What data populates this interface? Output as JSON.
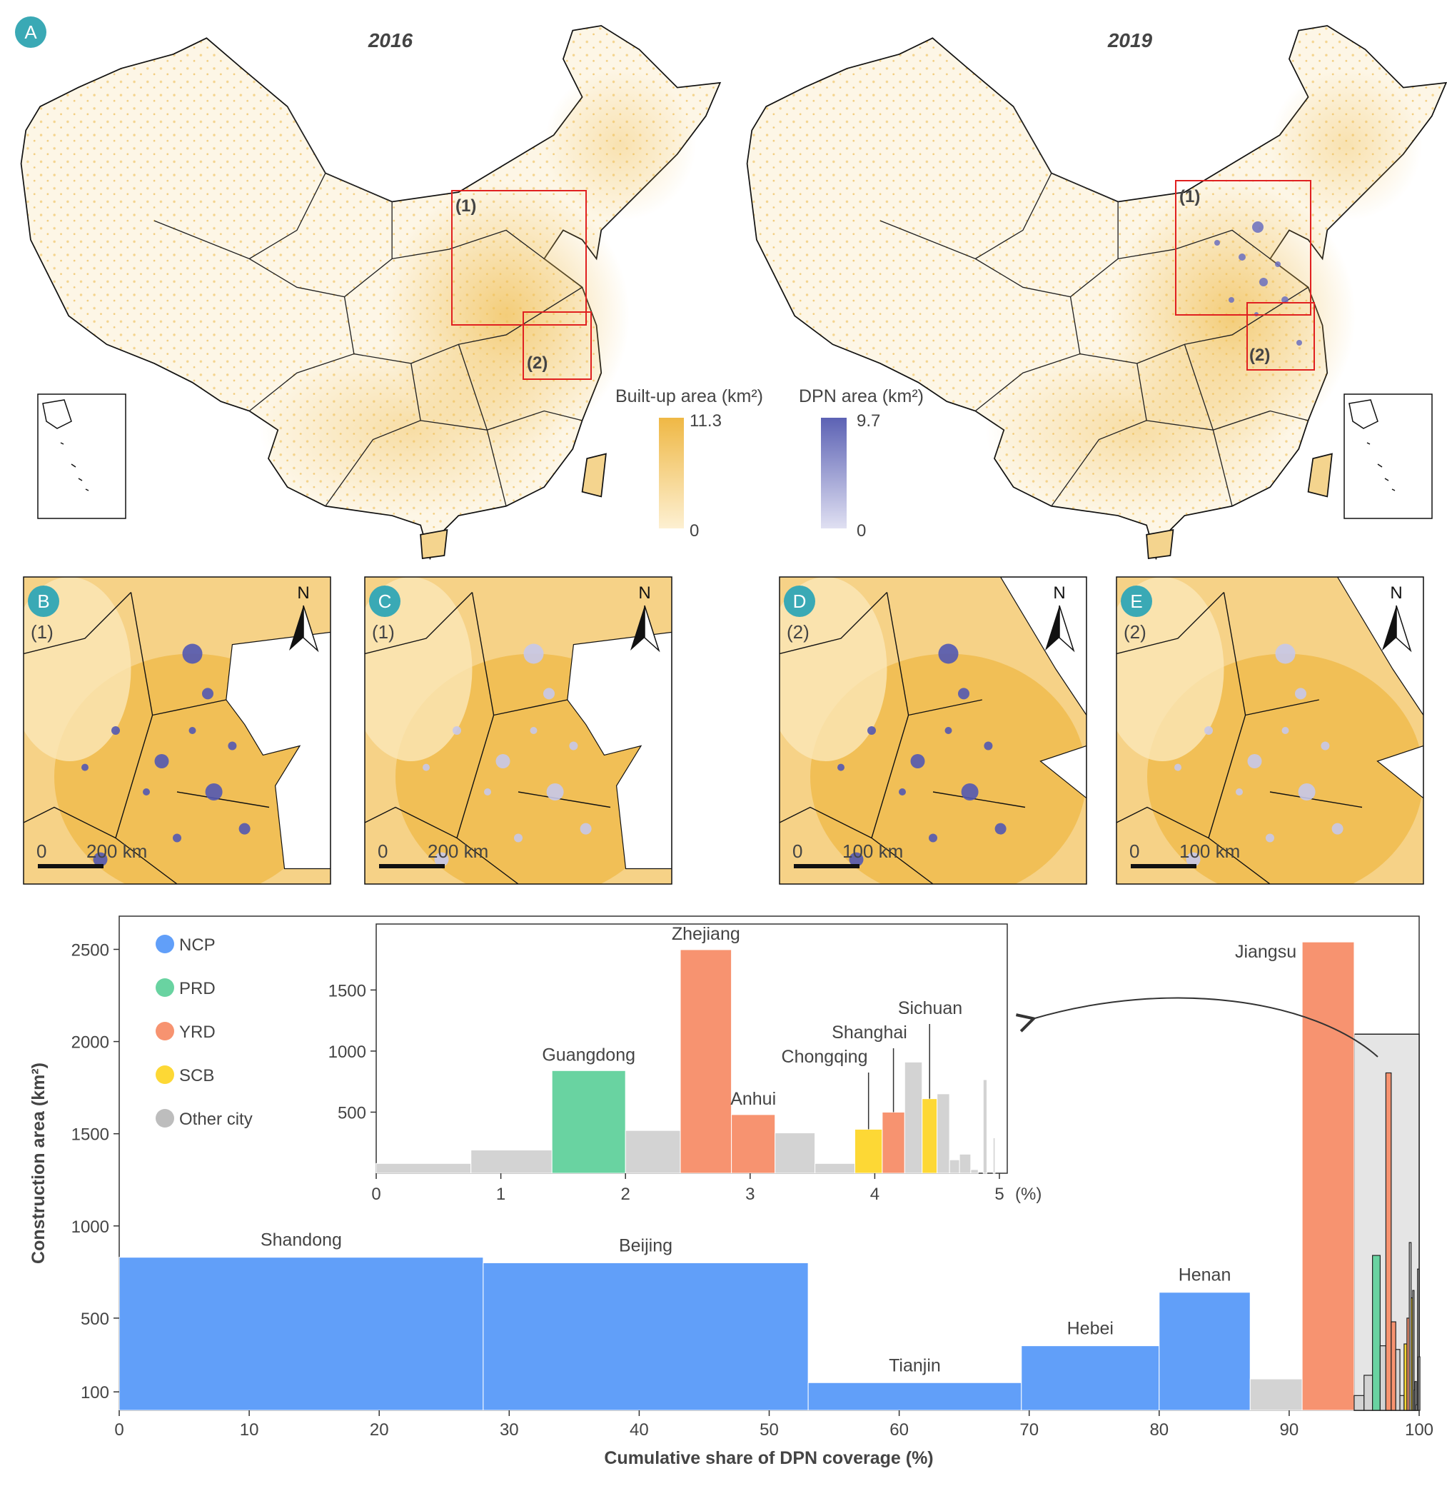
{
  "panel_a": {
    "badge": "A",
    "maps": [
      {
        "year": "2016",
        "box1_label": "(1)",
        "box2_label": "(2)"
      },
      {
        "year": "2019",
        "box1_label": "(1)",
        "box2_label": "(2)"
      }
    ],
    "legend_builtup": {
      "title": "Built-up area (km²)",
      "max": "11.3",
      "min": "0",
      "color_low": "#fdf0d2",
      "color_high": "#efb845"
    },
    "legend_dpn": {
      "title": "DPN area (km²)",
      "max": "9.7",
      "min": "0",
      "color_low": "#e0e0f2",
      "color_high": "#5c62b4"
    }
  },
  "zoom_panels": [
    {
      "badge": "B",
      "region": "(1)",
      "north": "N",
      "scale_zero": "0",
      "scale_label": "200 km",
      "dpn_color": "#5258b2"
    },
    {
      "badge": "C",
      "region": "(1)",
      "north": "N",
      "scale_zero": "0",
      "scale_label": "200 km",
      "dpn_color": "#c6c8ea"
    },
    {
      "badge": "D",
      "region": "(2)",
      "north": "N",
      "scale_zero": "0",
      "scale_label": "100 km",
      "dpn_color": "#5258b2"
    },
    {
      "badge": "E",
      "region": "(2)",
      "north": "N",
      "scale_zero": "0",
      "scale_label": "100 km",
      "dpn_color": "#c6c8ea"
    }
  ],
  "colors": {
    "NCP": "#619ff9",
    "PRD": "#69d3a1",
    "YRD": "#f79370",
    "SCB": "#fdd835",
    "Other": "#d3d3d3",
    "badge": "#3aa9b5"
  },
  "chart_data": [
    {
      "type": "bar",
      "xlabel": "Cumulative share of DPN coverage (%)",
      "ylabel": "Construction area (km²)",
      "xlim": [
        0,
        100
      ],
      "ylim": [
        0,
        2680
      ],
      "x_ticks": [
        "0",
        "10",
        "20",
        "30",
        "40",
        "50",
        "60",
        "70",
        "80",
        "90",
        "100"
      ],
      "y_ticks": [
        "100",
        "500",
        "1000",
        "1500",
        "2000",
        "2500"
      ],
      "grid": false,
      "legend": {
        "placement": "top-left",
        "items": [
          {
            "label": "NCP",
            "group": "NCP"
          },
          {
            "label": "PRD",
            "group": "PRD"
          },
          {
            "label": "YRD",
            "group": "YRD"
          },
          {
            "label": "SCB",
            "group": "SCB"
          },
          {
            "label": "Other city",
            "group": "Other"
          }
        ]
      },
      "bars": [
        {
          "x0": 0,
          "x1": 28,
          "value": 830,
          "group": "NCP",
          "label": "Shandong"
        },
        {
          "x0": 28,
          "x1": 53,
          "value": 800,
          "group": "NCP",
          "label": "Beijing"
        },
        {
          "x0": 53,
          "x1": 69.4,
          "value": 150,
          "group": "NCP",
          "label": "Tianjin"
        },
        {
          "x0": 69.4,
          "x1": 80,
          "value": 350,
          "group": "NCP",
          "label": "Hebei"
        },
        {
          "x0": 80,
          "x1": 87,
          "value": 640,
          "group": "NCP",
          "label": "Henan"
        },
        {
          "x0": 87,
          "x1": 91,
          "value": 170,
          "group": "Other",
          "label": ""
        },
        {
          "x0": 91,
          "x1": 95,
          "value": 2540,
          "group": "YRD",
          "label": "Jiangsu"
        }
      ],
      "zoom_region": {
        "x0": 95,
        "x1": 100,
        "value": 2040
      }
    },
    {
      "type": "bar",
      "xlim": [
        0,
        5
      ],
      "ylim": [
        0,
        2040
      ],
      "x_ticks": [
        "0",
        "1",
        "2",
        "3",
        "4",
        "5"
      ],
      "x_unit": "(%)",
      "y_ticks": [
        "500",
        "1000",
        "1500"
      ],
      "bars": [
        {
          "x0": 0,
          "x1": 0.76,
          "value": 80,
          "group": "Other",
          "label": ""
        },
        {
          "x0": 0.76,
          "x1": 1.41,
          "value": 190,
          "group": "Other",
          "label": ""
        },
        {
          "x0": 1.41,
          "x1": 2.0,
          "value": 840,
          "group": "PRD",
          "label": "Guangdong"
        },
        {
          "x0": 2.0,
          "x1": 2.44,
          "value": 350,
          "group": "Other",
          "label": ""
        },
        {
          "x0": 2.44,
          "x1": 2.85,
          "value": 1830,
          "group": "YRD",
          "label": "Zhejiang"
        },
        {
          "x0": 2.85,
          "x1": 3.2,
          "value": 480,
          "group": "YRD",
          "label": "Anhui"
        },
        {
          "x0": 3.2,
          "x1": 3.52,
          "value": 330,
          "group": "Other",
          "label": ""
        },
        {
          "x0": 3.52,
          "x1": 3.84,
          "value": 80,
          "group": "Other",
          "label": ""
        },
        {
          "x0": 3.84,
          "x1": 4.06,
          "value": 360,
          "group": "SCB",
          "label": "Chongqing"
        },
        {
          "x0": 4.06,
          "x1": 4.24,
          "value": 500,
          "group": "YRD",
          "label": "Shanghai"
        },
        {
          "x0": 4.24,
          "x1": 4.38,
          "value": 910,
          "group": "Other",
          "label": ""
        },
        {
          "x0": 4.38,
          "x1": 4.5,
          "value": 610,
          "group": "SCB",
          "label": "Sichuan"
        },
        {
          "x0": 4.5,
          "x1": 4.6,
          "value": 650,
          "group": "Other",
          "label": ""
        },
        {
          "x0": 4.6,
          "x1": 4.68,
          "value": 110,
          "group": "Other",
          "label": ""
        },
        {
          "x0": 4.68,
          "x1": 4.77,
          "value": 156,
          "group": "Other",
          "label": ""
        },
        {
          "x0": 4.77,
          "x1": 4.83,
          "value": 30,
          "group": "Other",
          "label": ""
        },
        {
          "x0": 4.87,
          "x1": 4.9,
          "value": 766,
          "group": "Other",
          "label": ""
        },
        {
          "x0": 4.95,
          "x1": 4.965,
          "value": 290,
          "group": "Other",
          "label": ""
        }
      ]
    }
  ]
}
